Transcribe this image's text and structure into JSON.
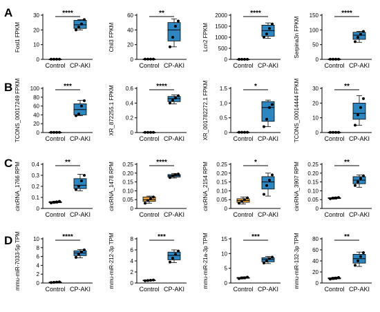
{
  "colors": {
    "blue": "#2E86C1",
    "orange": "#E8A33C",
    "dot": "#000000",
    "axis": "#000000"
  },
  "panels": [
    {
      "letter": "A",
      "row": 0
    },
    {
      "letter": "B",
      "row": 1
    },
    {
      "letter": "C",
      "row": 2
    },
    {
      "letter": "D",
      "row": 3
    }
  ],
  "chart_data": [
    {
      "type": "box",
      "ylabel": "Fosl1 FPKM",
      "categories": [
        "Control",
        "CP-AKI"
      ],
      "yticks": [
        0,
        10,
        20,
        30
      ],
      "ylim": [
        0,
        30
      ],
      "sig": "****",
      "groups": [
        {
          "points": [
            0.1,
            0.1,
            0.1,
            0.1
          ],
          "box": [
            0.1,
            0.1,
            0.1,
            0.1,
            0.1
          ],
          "fill": "blue"
        },
        {
          "points": [
            20,
            22,
            24,
            27
          ],
          "box": [
            20,
            21,
            23.5,
            26.5,
            27
          ],
          "fill": "blue"
        }
      ]
    },
    {
      "type": "box",
      "ylabel": "Chil3 FPKM",
      "categories": [
        "Control",
        "CP-AKI"
      ],
      "yticks": [
        0,
        20,
        40,
        60
      ],
      "ylim": [
        0,
        60
      ],
      "sig": "**",
      "groups": [
        {
          "points": [
            0.3,
            0.3,
            0.3,
            0.3
          ],
          "box": [
            0.3,
            0.3,
            0.3,
            0.3,
            0.3
          ],
          "fill": "blue"
        },
        {
          "points": [
            17,
            30,
            45,
            52
          ],
          "box": [
            17,
            25,
            40,
            50,
            55
          ],
          "fill": "blue"
        }
      ]
    },
    {
      "type": "box",
      "ylabel": "Lcn2 FPKM",
      "categories": [
        "Control",
        "CP-AKI"
      ],
      "yticks": [
        0,
        500,
        1000,
        1500,
        2000
      ],
      "ylim": [
        0,
        2000
      ],
      "sig": "****",
      "groups": [
        {
          "points": [
            2,
            2,
            2,
            2
          ],
          "box": [
            2,
            2,
            2,
            2,
            2
          ],
          "fill": "blue"
        },
        {
          "points": [
            1000,
            1150,
            1400,
            1600
          ],
          "box": [
            950,
            1050,
            1300,
            1550,
            1650
          ],
          "fill": "blue"
        }
      ]
    },
    {
      "type": "box",
      "ylabel": "Serpina3n FPKM",
      "categories": [
        "Control",
        "CP-AKI"
      ],
      "yticks": [
        0,
        50,
        100,
        150
      ],
      "ylim": [
        0,
        150
      ],
      "sig": "****",
      "groups": [
        {
          "points": [
            0.5,
            0.5,
            0.5,
            0.5
          ],
          "box": [
            0.5,
            0.5,
            0.5,
            0.5,
            0.5
          ],
          "fill": "blue"
        },
        {
          "points": [
            60,
            75,
            85,
            95
          ],
          "box": [
            58,
            68,
            82,
            92,
            95
          ],
          "fill": "blue"
        }
      ]
    },
    {
      "type": "box",
      "ylabel": "TCONS_00017249 FPKM",
      "categories": [
        "Control",
        "CP-AKI"
      ],
      "yticks": [
        0,
        20,
        40,
        60,
        80,
        100
      ],
      "ylim": [
        0,
        100
      ],
      "sig": "***",
      "groups": [
        {
          "points": [
            0.3,
            0.3,
            0.3,
            0.3
          ],
          "box": [
            0.3,
            0.3,
            0.3,
            0.3,
            0.3
          ],
          "fill": "blue"
        },
        {
          "points": [
            38,
            42,
            60,
            72
          ],
          "box": [
            38,
            40,
            52,
            65,
            73
          ],
          "fill": "blue"
        }
      ]
    },
    {
      "type": "box",
      "ylabel": "XR_872255.1 FPKM",
      "categories": [
        "Control",
        "CP-AKI"
      ],
      "yticks": [
        0,
        0.2,
        0.4,
        0.6
      ],
      "ylim": [
        0,
        0.6
      ],
      "sig": "****",
      "groups": [
        {
          "points": [
            0.002,
            0.002,
            0.002,
            0.002
          ],
          "box": [
            0.002,
            0.002,
            0.002,
            0.002,
            0.002
          ],
          "fill": "blue"
        },
        {
          "points": [
            0.4,
            0.44,
            0.47,
            0.5
          ],
          "box": [
            0.39,
            0.42,
            0.46,
            0.49,
            0.51
          ],
          "fill": "blue"
        }
      ]
    },
    {
      "type": "box",
      "ylabel": "XR_001782272.1 FPKM",
      "categories": [
        "Control",
        "CP-AKI"
      ],
      "yticks": [
        0,
        0.5,
        1.0,
        1.5
      ],
      "ylim": [
        0,
        1.5
      ],
      "sig": "*",
      "groups": [
        {
          "points": [
            0.01,
            0.01,
            0.01,
            0.01
          ],
          "box": [
            0.01,
            0.01,
            0.01,
            0.01,
            0.01
          ],
          "fill": "blue"
        },
        {
          "points": [
            0.2,
            0.45,
            0.85,
            0.95
          ],
          "box": [
            0.2,
            0.38,
            0.85,
            1.05,
            1.1
          ],
          "fill": "blue"
        }
      ]
    },
    {
      "type": "box",
      "ylabel": "TCONS_00014444 FPKM",
      "categories": [
        "Control",
        "CP-AKI"
      ],
      "yticks": [
        0,
        10,
        20,
        30
      ],
      "ylim": [
        0,
        30
      ],
      "sig": "**",
      "groups": [
        {
          "points": [
            0.1,
            0.1,
            0.1,
            0.1
          ],
          "box": [
            0.1,
            0.1,
            0.1,
            0.1,
            0.1
          ],
          "fill": "blue"
        },
        {
          "points": [
            5,
            12,
            17,
            23
          ],
          "box": [
            5,
            9,
            13,
            20,
            25
          ],
          "fill": "blue"
        }
      ]
    },
    {
      "type": "box",
      "ylabel": "circRNA_1766 RPM",
      "categories": [
        "Control",
        "CP-AKI"
      ],
      "yticks": [
        0,
        0.1,
        0.2,
        0.3,
        0.4
      ],
      "ylim": [
        0,
        0.4
      ],
      "sig": "**",
      "groups": [
        {
          "points": [
            0.05,
            0.055,
            0.06,
            0.065
          ],
          "box": [
            0.048,
            0.052,
            0.057,
            0.062,
            0.066
          ],
          "fill": "blue"
        },
        {
          "points": [
            0.17,
            0.2,
            0.25,
            0.3
          ],
          "box": [
            0.16,
            0.18,
            0.21,
            0.27,
            0.31
          ],
          "fill": "blue"
        }
      ]
    },
    {
      "type": "box",
      "ylabel": "circRNA_1478 RPM",
      "categories": [
        "Control",
        "CP-AKI"
      ],
      "yticks": [
        0,
        0.05,
        0.1,
        0.15,
        0.2,
        0.25
      ],
      "ylim": [
        0,
        0.25
      ],
      "sig": "****",
      "groups": [
        {
          "points": [
            0.03,
            0.045,
            0.055,
            0.065
          ],
          "box": [
            0.03,
            0.04,
            0.05,
            0.065,
            0.07
          ],
          "fill": "orange"
        },
        {
          "points": [
            0.175,
            0.185,
            0.19,
            0.195
          ],
          "box": [
            0.172,
            0.178,
            0.185,
            0.192,
            0.198
          ],
          "fill": "blue"
        }
      ]
    },
    {
      "type": "box",
      "ylabel": "circRNA_2154 RPM",
      "categories": [
        "Control",
        "CP-AKI"
      ],
      "yticks": [
        0,
        0.05,
        0.1,
        0.15,
        0.2,
        0.25
      ],
      "ylim": [
        0,
        0.25
      ],
      "sig": "*",
      "groups": [
        {
          "points": [
            0.03,
            0.04,
            0.05,
            0.06
          ],
          "box": [
            0.025,
            0.035,
            0.045,
            0.055,
            0.065
          ],
          "fill": "orange"
        },
        {
          "points": [
            0.08,
            0.13,
            0.16,
            0.19
          ],
          "box": [
            0.07,
            0.11,
            0.15,
            0.18,
            0.2
          ],
          "fill": "blue"
        }
      ]
    },
    {
      "type": "box",
      "ylabel": "circRNA_3907 RPM",
      "categories": [
        "Control",
        "CP-AKI"
      ],
      "yticks": [
        0,
        0.05,
        0.1,
        0.15,
        0.2,
        0.25
      ],
      "ylim": [
        0,
        0.25
      ],
      "sig": "**",
      "groups": [
        {
          "points": [
            0.055,
            0.058,
            0.06,
            0.062
          ],
          "box": [
            0.053,
            0.056,
            0.059,
            0.061,
            0.064
          ],
          "fill": "blue"
        },
        {
          "points": [
            0.13,
            0.15,
            0.17,
            0.185
          ],
          "box": [
            0.12,
            0.14,
            0.16,
            0.18,
            0.19
          ],
          "fill": "blue"
        }
      ]
    },
    {
      "type": "box",
      "ylabel": "mmu-miR-7033-5p TPM",
      "categories": [
        "Control",
        "CP-AKI"
      ],
      "yticks": [
        0,
        2,
        4,
        6,
        8,
        10
      ],
      "ylim": [
        0,
        10
      ],
      "sig": "****",
      "groups": [
        {
          "points": [
            0.1,
            0.15,
            0.2,
            0.25
          ],
          "box": [
            0.08,
            0.12,
            0.18,
            0.22,
            0.26
          ],
          "fill": "blue"
        },
        {
          "points": [
            5.8,
            6.5,
            7,
            7.5
          ],
          "box": [
            5.7,
            6.2,
            6.8,
            7.3,
            7.6
          ],
          "fill": "blue"
        }
      ]
    },
    {
      "type": "box",
      "ylabel": "mmu-miR-212-3p TPM",
      "categories": [
        "Control",
        "CP-AKI"
      ],
      "yticks": [
        0,
        2,
        4,
        6,
        8
      ],
      "ylim": [
        0,
        8
      ],
      "sig": "***",
      "groups": [
        {
          "points": [
            0.4,
            0.45,
            0.5,
            0.55
          ],
          "box": [
            0.38,
            0.42,
            0.48,
            0.53,
            0.57
          ],
          "fill": "blue"
        },
        {
          "points": [
            3.8,
            4.5,
            5.2,
            5.8
          ],
          "box": [
            3.7,
            4.2,
            5,
            5.6,
            6
          ],
          "fill": "blue"
        }
      ]
    },
    {
      "type": "box",
      "ylabel": "mmu-miR-21a-3p TPM",
      "categories": [
        "Control",
        "CP-AKI"
      ],
      "yticks": [
        0,
        5,
        10,
        15
      ],
      "ylim": [
        0,
        15
      ],
      "sig": "***",
      "groups": [
        {
          "points": [
            1.5,
            1.7,
            1.8,
            2.0
          ],
          "box": [
            1.4,
            1.6,
            1.75,
            1.9,
            2.1
          ],
          "fill": "blue"
        },
        {
          "points": [
            6.8,
            7.5,
            8.3,
            8.8
          ],
          "box": [
            6.6,
            7.2,
            8,
            8.6,
            9
          ],
          "fill": "blue"
        }
      ]
    },
    {
      "type": "box",
      "ylabel": "mmu-miR-132-3p TPM",
      "categories": [
        "Control",
        "CP-AKI"
      ],
      "yticks": [
        0,
        20,
        40,
        60,
        80
      ],
      "ylim": [
        0,
        80
      ],
      "sig": "**",
      "groups": [
        {
          "points": [
            7,
            8,
            9,
            10
          ],
          "box": [
            6.5,
            7.5,
            8.5,
            9.5,
            10.5
          ],
          "fill": "blue"
        },
        {
          "points": [
            32,
            40,
            48,
            55
          ],
          "box": [
            30,
            36,
            44,
            52,
            56
          ],
          "fill": "blue"
        }
      ]
    }
  ]
}
